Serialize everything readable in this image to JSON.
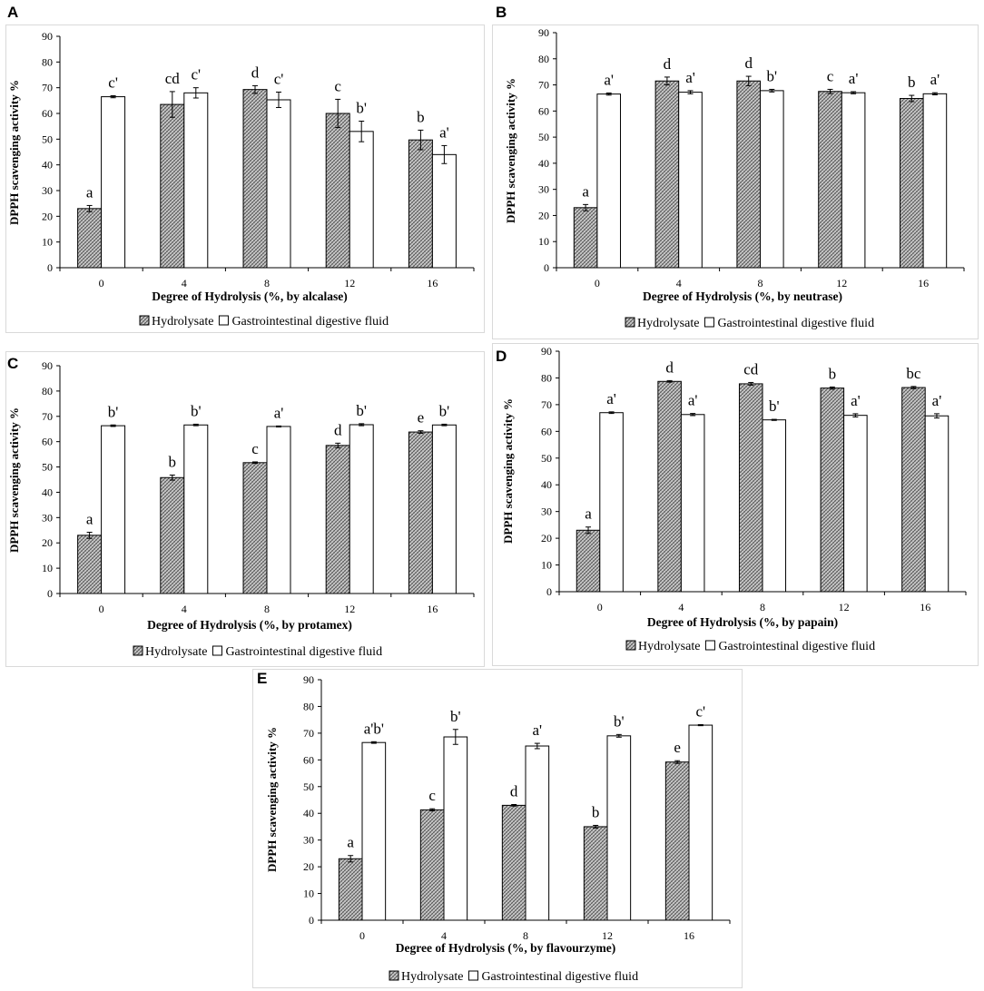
{
  "colors": {
    "hydrolysate_fill": "hatch-grey",
    "gi_fill": "#ffffff",
    "frame": "#d9d9d9"
  },
  "legend": {
    "hydrolysate": "Hydrolysate",
    "gi": "Gastrointestinal digestive fluid"
  },
  "chart_data": [
    {
      "panel": "A",
      "type": "bar",
      "ylabel": "DPPH scavenging activity %",
      "xlabel": "Degree of Hydrolysis (%, by alcalase)",
      "ylim": [
        0,
        90
      ],
      "yticks": [
        "0",
        "10",
        "20",
        "30",
        "40",
        "50",
        "60",
        "70",
        "80",
        "90"
      ],
      "categories": [
        "0",
        "4",
        "8",
        "12",
        "16"
      ],
      "series": [
        {
          "name": "Hydrolysate",
          "values": [
            23,
            63.5,
            69.3,
            60,
            49.7
          ],
          "errors": [
            1.2,
            5,
            1.5,
            5.5,
            3.8
          ],
          "labels": [
            "a",
            "cd",
            "d",
            "c",
            "b"
          ]
        },
        {
          "name": "Gastrointestinal digestive fluid",
          "values": [
            66.5,
            68,
            65.3,
            53,
            44
          ],
          "errors": [
            0.4,
            2,
            3,
            4,
            3.5
          ],
          "labels": [
            "c'",
            "c'",
            "c'",
            "b'",
            "a'"
          ]
        }
      ]
    },
    {
      "panel": "B",
      "type": "bar",
      "ylabel": "DPPH scavenging activity %",
      "xlabel": "Degree of Hydrolysis (%, by neutrase)",
      "ylim": [
        0,
        90
      ],
      "yticks": [
        "0",
        "10",
        "20",
        "30",
        "40",
        "50",
        "60",
        "70",
        "80",
        "90"
      ],
      "categories": [
        "0",
        "4",
        "8",
        "12",
        "16"
      ],
      "series": [
        {
          "name": "Hydrolysate",
          "values": [
            23,
            71.5,
            71.5,
            67.5,
            64.8
          ],
          "errors": [
            1.2,
            1.5,
            1.8,
            0.8,
            1.2
          ],
          "labels": [
            "a",
            "d",
            "d",
            "c",
            "b"
          ]
        },
        {
          "name": "Gastrointestinal digestive fluid",
          "values": [
            66.5,
            67.2,
            67.8,
            67,
            66.6
          ],
          "errors": [
            0.4,
            0.6,
            0.5,
            0.4,
            0.4
          ],
          "labels": [
            "a'",
            "a'",
            "b'",
            "a'",
            "a'"
          ]
        }
      ]
    },
    {
      "panel": "C",
      "type": "bar",
      "ylabel": "DPPH scavenging activity %",
      "xlabel": "Degree of Hydrolysis (%, by protamex)",
      "ylim": [
        0,
        90
      ],
      "yticks": [
        "0",
        "10",
        "20",
        "30",
        "40",
        "50",
        "60",
        "70",
        "80",
        "90"
      ],
      "categories": [
        "0",
        "4",
        "8",
        "12",
        "16"
      ],
      "series": [
        {
          "name": "Hydrolysate",
          "values": [
            23,
            45.8,
            51.7,
            58.5,
            63.8
          ],
          "errors": [
            1.2,
            1,
            0.3,
            0.9,
            0.5
          ],
          "labels": [
            "a",
            "b",
            "c",
            "d",
            "e"
          ]
        },
        {
          "name": "Gastrointestinal digestive fluid",
          "values": [
            66.3,
            66.6,
            66,
            66.7,
            66.6
          ],
          "errors": [
            0.3,
            0.3,
            0.2,
            0.4,
            0.3
          ],
          "labels": [
            "b'",
            "b'",
            "a'",
            "b'",
            "b'"
          ]
        }
      ]
    },
    {
      "panel": "D",
      "type": "bar",
      "ylabel": "DPPH scavenging activity %",
      "xlabel": "Degree of Hydrolysis (%, by papain)",
      "ylim": [
        0,
        90
      ],
      "yticks": [
        "0",
        "10",
        "20",
        "30",
        "40",
        "50",
        "60",
        "70",
        "80",
        "90"
      ],
      "categories": [
        "0",
        "4",
        "8",
        "12",
        "16"
      ],
      "series": [
        {
          "name": "Hydrolysate",
          "values": [
            23,
            78.7,
            77.8,
            76.2,
            76.4
          ],
          "errors": [
            1.2,
            0.3,
            0.5,
            0.4,
            0.4
          ],
          "labels": [
            "a",
            "d",
            "cd",
            "b",
            "bc"
          ]
        },
        {
          "name": "Gastrointestinal digestive fluid",
          "values": [
            67,
            66.3,
            64.3,
            66,
            65.8
          ],
          "errors": [
            0.3,
            0.4,
            0.2,
            0.6,
            0.8
          ],
          "labels": [
            "a'",
            "a'",
            "b'",
            "a'",
            "a'"
          ]
        }
      ]
    },
    {
      "panel": "E",
      "type": "bar",
      "ylabel": "DPPH scavenging activity %",
      "xlabel": "Degree of Hydrolysis (%, by flavourzyme)",
      "ylim": [
        0,
        90
      ],
      "yticks": [
        "0",
        "10",
        "20",
        "30",
        "40",
        "50",
        "60",
        "70",
        "80",
        "90"
      ],
      "categories": [
        "0",
        "4",
        "8",
        "12",
        "16"
      ],
      "series": [
        {
          "name": "Hydrolysate",
          "values": [
            23,
            41.3,
            43,
            35,
            59.2
          ],
          "errors": [
            1.2,
            0.4,
            0.3,
            0.5,
            0.5
          ],
          "labels": [
            "a",
            "c",
            "d",
            "b",
            "e"
          ]
        },
        {
          "name": "Gastrointestinal digestive fluid",
          "values": [
            66.5,
            68.6,
            65.2,
            69,
            73
          ],
          "errors": [
            0.3,
            2.8,
            1,
            0.5,
            0.2
          ],
          "labels": [
            "a'b'",
            "b'",
            "a'",
            "b'",
            "c'"
          ]
        }
      ]
    }
  ]
}
